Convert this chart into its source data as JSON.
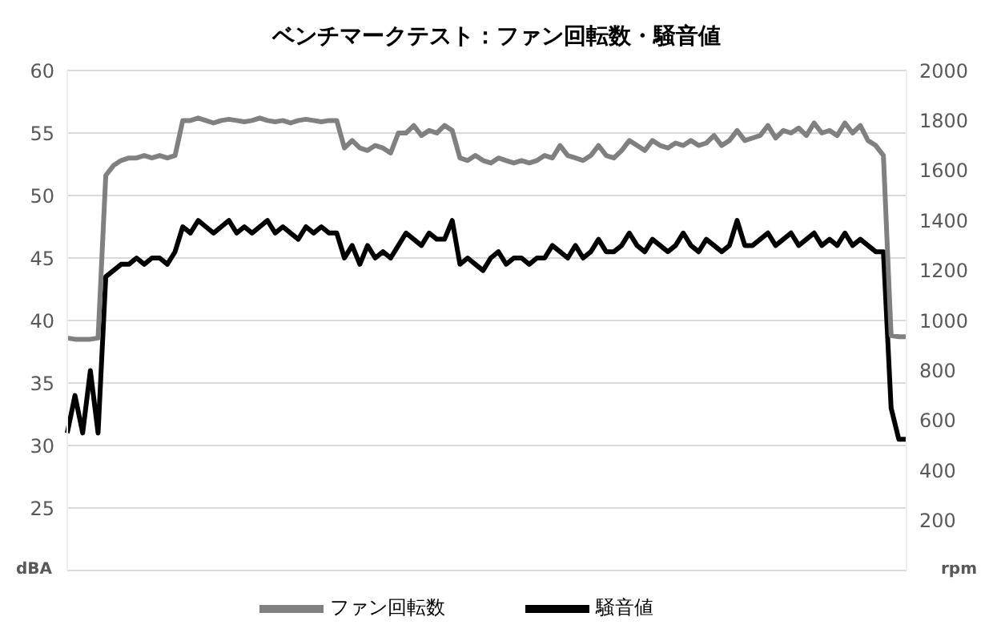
{
  "chart_data": {
    "type": "line",
    "title": "ベンチマークテスト：ファン回転数・騒音値",
    "ylabel": "dBA",
    "y2label": "rpm",
    "categories": [
      null,
      null,
      null,
      null,
      null,
      null,
      null,
      null,
      null,
      null,
      null,
      null,
      null,
      null,
      null,
      null,
      null,
      null,
      null,
      null,
      null,
      null,
      null,
      null,
      null,
      null,
      null,
      null,
      null,
      null,
      null,
      null,
      null,
      null,
      null,
      null,
      null,
      null,
      null,
      null,
      null,
      null,
      null,
      null,
      null,
      null,
      null,
      null,
      null,
      null,
      null,
      null,
      null,
      null,
      null,
      null,
      null,
      null,
      null,
      null,
      null,
      null,
      null,
      null,
      null,
      null,
      null,
      null,
      null,
      null,
      null,
      null,
      null,
      null,
      null,
      null,
      null,
      null,
      null,
      null,
      null,
      null,
      null,
      null,
      null,
      null,
      null,
      null,
      null,
      null,
      null,
      null,
      null,
      null,
      null,
      null,
      null,
      null,
      null,
      null,
      null,
      null,
      null,
      null,
      null,
      null,
      null,
      null,
      null,
      null
    ],
    "series": [
      {
        "name": "騒音値",
        "color": "#000000",
        "values": [
          31,
          34,
          31,
          36,
          31,
          43.5,
          44,
          44.5,
          44.5,
          45,
          44.5,
          45,
          45,
          44.5,
          45.5,
          47.5,
          47,
          48,
          47.5,
          47,
          47.5,
          48,
          47,
          47.5,
          47,
          47.5,
          48,
          47,
          47.5,
          47,
          46.5,
          47.5,
          47,
          47.5,
          47,
          47,
          45,
          46,
          44.5,
          46,
          45,
          45.5,
          45,
          46,
          47,
          46.5,
          46,
          47,
          46.5,
          46.5,
          48,
          44.5,
          45,
          44.5,
          44,
          45,
          45.5,
          44.5,
          45,
          45,
          44.5,
          45,
          45,
          46,
          45.5,
          45,
          46,
          45,
          45.5,
          46.5,
          45.5,
          45.5,
          46,
          47,
          46,
          45.5,
          46.5,
          46,
          45.5,
          46,
          47,
          46,
          45.5,
          46.5,
          46,
          45.5,
          46,
          48,
          46,
          46,
          46.5,
          47,
          46,
          46.5,
          47,
          46,
          46.5,
          47,
          46,
          46.5,
          46,
          47,
          46,
          46.5,
          46,
          45.5,
          45.5,
          33,
          30.5,
          30.5
        ]
      },
      {
        "name": "ファン回転数",
        "color": "#808080",
        "axis": "y2",
        "values": [
          930,
          925,
          925,
          925,
          930,
          1580,
          1620,
          1640,
          1650,
          1650,
          1660,
          1650,
          1660,
          1650,
          1660,
          1800,
          1800,
          1810,
          1800,
          1790,
          1800,
          1805,
          1800,
          1795,
          1800,
          1810,
          1800,
          1795,
          1800,
          1790,
          1800,
          1805,
          1800,
          1795,
          1800,
          1800,
          1690,
          1720,
          1690,
          1680,
          1700,
          1690,
          1670,
          1750,
          1750,
          1780,
          1740,
          1760,
          1750,
          1780,
          1760,
          1650,
          1640,
          1660,
          1640,
          1630,
          1650,
          1640,
          1630,
          1640,
          1630,
          1640,
          1660,
          1650,
          1700,
          1660,
          1650,
          1640,
          1660,
          1700,
          1660,
          1650,
          1680,
          1720,
          1700,
          1680,
          1720,
          1700,
          1690,
          1710,
          1700,
          1720,
          1700,
          1710,
          1740,
          1700,
          1720,
          1760,
          1720,
          1730,
          1740,
          1780,
          1730,
          1760,
          1750,
          1770,
          1740,
          1790,
          1750,
          1760,
          1740,
          1790,
          1750,
          1780,
          1720,
          1700,
          1660,
          940,
          935,
          935
        ]
      }
    ],
    "ylim": [
      20,
      60
    ],
    "yticks": [
      25,
      30,
      35,
      40,
      45,
      50,
      55,
      60
    ],
    "y2lim": [
      0,
      2000
    ],
    "y2ticks": [
      200,
      400,
      600,
      800,
      1000,
      1200,
      1400,
      1600,
      1800,
      2000
    ],
    "grid": "y",
    "legend": "bottom",
    "marker": "none",
    "line_style": "solid"
  }
}
